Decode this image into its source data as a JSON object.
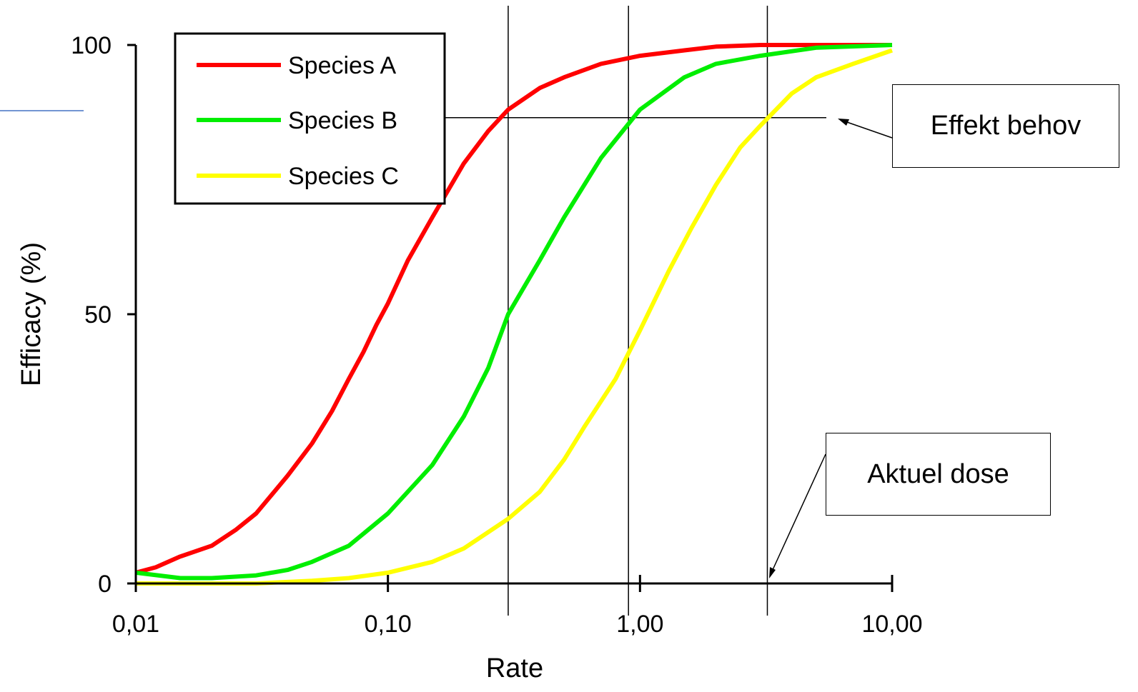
{
  "chart_data": {
    "type": "line",
    "xscale": "log",
    "xlim": [
      0.01,
      10
    ],
    "ylim": [
      0,
      100
    ],
    "xlabel": "Rate",
    "ylabel": "Efficacy (%)",
    "x_ticks": [
      {
        "value": 0.01,
        "label": "0,01"
      },
      {
        "value": 0.1,
        "label": "0,10"
      },
      {
        "value": 1,
        "label": "1,00"
      },
      {
        "value": 10,
        "label": "10,00"
      }
    ],
    "y_ticks": [
      {
        "value": 0,
        "label": "0"
      },
      {
        "value": 50,
        "label": "50"
      },
      {
        "value": 100,
        "label": "100"
      }
    ],
    "legend_position": "top-left",
    "series": [
      {
        "name": "Species A",
        "color": "#ff0000",
        "x": [
          0.01,
          0.012,
          0.015,
          0.02,
          0.025,
          0.03,
          0.04,
          0.05,
          0.06,
          0.07,
          0.08,
          0.09,
          0.1,
          0.12,
          0.15,
          0.2,
          0.25,
          0.3,
          0.4,
          0.5,
          0.7,
          1.0,
          1.5,
          2.0,
          3.0,
          5.0,
          10.0
        ],
        "y": [
          2,
          3,
          5,
          7,
          10,
          13,
          20,
          26,
          32,
          38,
          43,
          48,
          52,
          60,
          68,
          78,
          84,
          88,
          92,
          94,
          96.5,
          98,
          99,
          99.7,
          100,
          100,
          100
        ]
      },
      {
        "name": "Species B",
        "color": "#00ee00",
        "x": [
          0.01,
          0.015,
          0.02,
          0.03,
          0.04,
          0.05,
          0.07,
          0.1,
          0.15,
          0.2,
          0.25,
          0.3,
          0.4,
          0.5,
          0.7,
          1.0,
          1.5,
          2.0,
          3.0,
          5.0,
          10.0
        ],
        "y": [
          2,
          1,
          1,
          1.5,
          2.5,
          4,
          7,
          13,
          22,
          31,
          40,
          50,
          60,
          68,
          79,
          88,
          94,
          96.5,
          98,
          99.5,
          100
        ]
      },
      {
        "name": "Species C",
        "color": "#ffff00",
        "x": [
          0.01,
          0.02,
          0.03,
          0.05,
          0.07,
          0.1,
          0.15,
          0.2,
          0.3,
          0.4,
          0.5,
          0.6,
          0.8,
          1.0,
          1.3,
          1.6,
          2.0,
          2.5,
          3.0,
          4.0,
          5.0,
          7.0,
          10.0
        ],
        "y": [
          0,
          0,
          0,
          0.5,
          1,
          2,
          4,
          6.5,
          12,
          17,
          23,
          29,
          38,
          47,
          58,
          66,
          74,
          81,
          85,
          91,
          94,
          96.5,
          99
        ]
      }
    ],
    "reference_x": [
      0.3,
      0.9,
      3.2
    ],
    "reference_y": 86.5
  },
  "annotations": {
    "effekt_behov": "Effekt behov",
    "aktuel_dose": "Aktuel dose"
  }
}
